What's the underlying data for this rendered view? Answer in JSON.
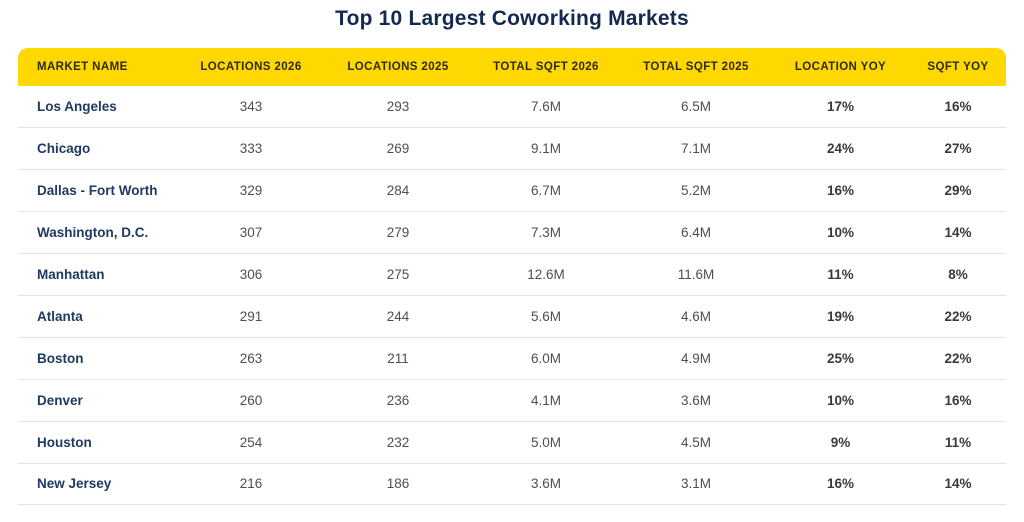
{
  "title": "Top 10 Largest Coworking Markets",
  "colors": {
    "header_bg": "#FFD701",
    "header_text": "#2E2C10",
    "title_text": "#14294E",
    "market_name_text": "#1F3A60",
    "number_text": "#4F4F52",
    "yoy_text": "#3A3A3C",
    "row_divider": "#E4E4E6",
    "page_bg": "#FFFFFF"
  },
  "chart_data": {
    "type": "table",
    "title": "Top 10 Largest Coworking Markets",
    "columns": [
      {
        "key": "market",
        "label": "MARKET NAME",
        "align": "left"
      },
      {
        "key": "loc2026",
        "label": "LOCATIONS 2026",
        "align": "center"
      },
      {
        "key": "loc2025",
        "label": "LOCATIONS 2025",
        "align": "center"
      },
      {
        "key": "sqft2026",
        "label": "TOTAL SQFT 2026",
        "align": "center"
      },
      {
        "key": "sqft2025",
        "label": "TOTAL SQFT 2025",
        "align": "center"
      },
      {
        "key": "locyoy",
        "label": "LOCATION YOY",
        "align": "center"
      },
      {
        "key": "sqftyoy",
        "label": "SQFT YOY",
        "align": "center"
      }
    ],
    "rows": [
      {
        "market": "Los Angeles",
        "loc2026": "343",
        "loc2025": "293",
        "sqft2026": "7.6M",
        "sqft2025": "6.5M",
        "locyoy": "17%",
        "sqftyoy": "16%"
      },
      {
        "market": "Chicago",
        "loc2026": "333",
        "loc2025": "269",
        "sqft2026": "9.1M",
        "sqft2025": "7.1M",
        "locyoy": "24%",
        "sqftyoy": "27%"
      },
      {
        "market": "Dallas - Fort Worth",
        "loc2026": "329",
        "loc2025": "284",
        "sqft2026": "6.7M",
        "sqft2025": "5.2M",
        "locyoy": "16%",
        "sqftyoy": "29%"
      },
      {
        "market": "Washington, D.C.",
        "loc2026": "307",
        "loc2025": "279",
        "sqft2026": "7.3M",
        "sqft2025": "6.4M",
        "locyoy": "10%",
        "sqftyoy": "14%"
      },
      {
        "market": "Manhattan",
        "loc2026": "306",
        "loc2025": "275",
        "sqft2026": "12.6M",
        "sqft2025": "11.6M",
        "locyoy": "11%",
        "sqftyoy": "8%"
      },
      {
        "market": "Atlanta",
        "loc2026": "291",
        "loc2025": "244",
        "sqft2026": "5.6M",
        "sqft2025": "4.6M",
        "locyoy": "19%",
        "sqftyoy": "22%"
      },
      {
        "market": "Boston",
        "loc2026": "263",
        "loc2025": "211",
        "sqft2026": "6.0M",
        "sqft2025": "4.9M",
        "locyoy": "25%",
        "sqftyoy": "22%"
      },
      {
        "market": "Denver",
        "loc2026": "260",
        "loc2025": "236",
        "sqft2026": "4.1M",
        "sqft2025": "3.6M",
        "locyoy": "10%",
        "sqftyoy": "16%"
      },
      {
        "market": "Houston",
        "loc2026": "254",
        "loc2025": "232",
        "sqft2026": "5.0M",
        "sqft2025": "4.5M",
        "locyoy": "9%",
        "sqftyoy": "11%"
      },
      {
        "market": "New Jersey",
        "loc2026": "216",
        "loc2025": "186",
        "sqft2026": "3.6M",
        "sqft2025": "3.1M",
        "locyoy": "16%",
        "sqftyoy": "14%"
      }
    ]
  }
}
